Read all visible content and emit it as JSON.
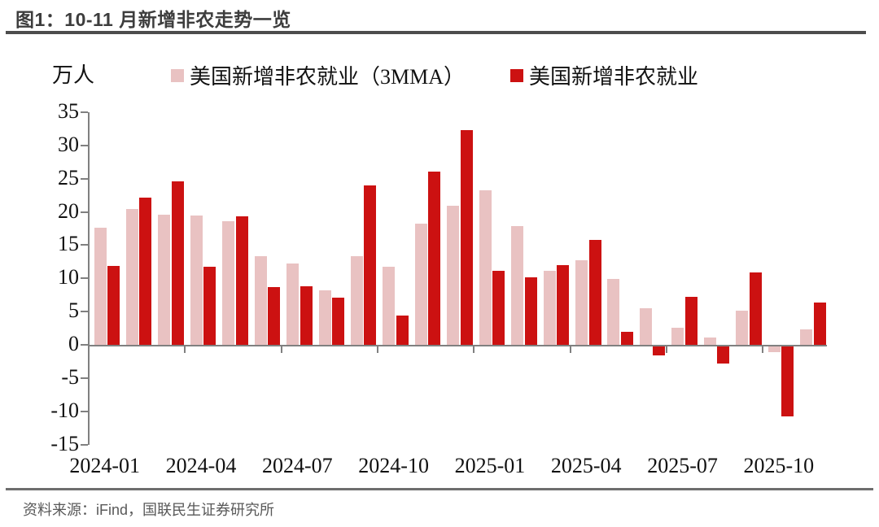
{
  "header": {
    "title": "图1：10-11 月新增非农走势一览"
  },
  "chart": {
    "unit_label": "万人",
    "legend": [
      {
        "label": "美国新增非农就业（3MMA）",
        "color": "#E9C2C2"
      },
      {
        "label": "美国新增非农就业",
        "color": "#CC1111"
      }
    ]
  },
  "chart_data": {
    "type": "bar",
    "title": "图1：10-11 月新增非农走势一览",
    "ylabel": "万人",
    "ylim": [
      -15,
      35
    ],
    "ytick_step": 5,
    "ytick_labels": [
      "35",
      "30",
      "25",
      "20",
      "15",
      "10",
      "5",
      "0",
      "-5",
      "-10",
      "-15"
    ],
    "categories": [
      "2024-01",
      "2024-02",
      "2024-03",
      "2024-04",
      "2024-05",
      "2024-06",
      "2024-07",
      "2024-08",
      "2024-09",
      "2024-10",
      "2024-11",
      "2024-12",
      "2025-01",
      "2025-02",
      "2025-03",
      "2025-04",
      "2025-05",
      "2025-06",
      "2025-07",
      "2025-08",
      "2025-09",
      "2025-10",
      "2025-11"
    ],
    "xtick_labels": [
      "2024-01",
      "2024-04",
      "2024-07",
      "2024-10",
      "2025-01",
      "2025-04",
      "2025-07",
      "2025-10"
    ],
    "series": [
      {
        "name": "美国新增非农就业（3MMA）",
        "color": "#E9C2C2",
        "values": [
          17.6,
          20.4,
          19.6,
          19.5,
          18.6,
          13.3,
          12.3,
          8.2,
          13.3,
          11.8,
          18.2,
          20.9,
          23.2,
          17.9,
          11.1,
          12.7,
          9.9,
          5.5,
          2.6,
          1.1,
          5.2,
          -0.8,
          2.3
        ]
      },
      {
        "name": "美国新增非农就业",
        "color": "#CC1111",
        "values": [
          11.9,
          22.2,
          24.6,
          11.8,
          19.3,
          8.7,
          8.8,
          7.1,
          24.0,
          4.4,
          26.1,
          32.3,
          11.1,
          10.2,
          12.0,
          15.8,
          1.9,
          -1.3,
          7.2,
          -2.6,
          10.9,
          -10.5,
          6.4
        ]
      }
    ],
    "legend_position": "top",
    "grid": false,
    "axis_color": "#808080"
  },
  "footer": {
    "source": "资料来源：iFind，国联民生证券研究所"
  }
}
